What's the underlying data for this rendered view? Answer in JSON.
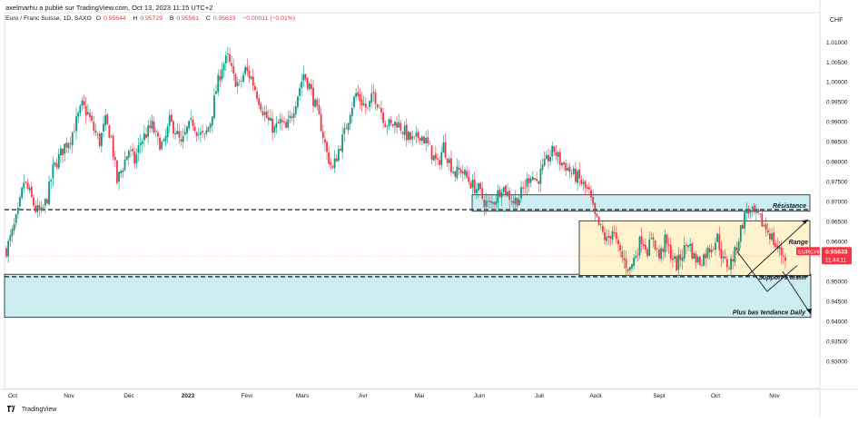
{
  "header": {
    "publisher": "axelmarhu a publié sur TradingView.com, Oct 13, 2023 11:15 UTC+2",
    "symbol_line": "Euro / Franc Suisse, 1D, SAXO",
    "ohlc": [
      {
        "label": "O",
        "value": "0.95644"
      },
      {
        "label": "H",
        "value": "0.95729"
      },
      {
        "label": "B",
        "value": "0.95561"
      },
      {
        "label": "C",
        "value": "0.95633"
      }
    ],
    "change": "−0.00011 (−0.01%)"
  },
  "footer": {
    "brand": "TradingView"
  },
  "chart_data": {
    "type": "candlestick",
    "symbol": "EURCHF",
    "currency": "CHF",
    "last_price": "0.95633",
    "countdown": "11:44:11",
    "ylim": [
      0.9232,
      1.0137
    ],
    "y_ticks": [
      "1.01000",
      "1.00500",
      "1.00000",
      "0.99500",
      "0.99000",
      "0.98500",
      "0.98000",
      "0.97500",
      "0.97000",
      "0.96500",
      "0.96000",
      "0.95500",
      "0.95000",
      "0.94500",
      "0.94000",
      "0.93500",
      "0.93000"
    ],
    "x_ticks": [
      "Oct",
      "Nov",
      "Déc",
      "2023",
      "Févr",
      "Mars",
      "Avr",
      "Mai",
      "Juin",
      "Juil",
      "Août",
      "Sept",
      "Oct",
      "Nov"
    ],
    "colors": {
      "up": "#089981",
      "down": "#f23645",
      "zone_blue": "#cdeef1",
      "zone_yellow": "#fff3cd",
      "axis_badge": "#f23645"
    },
    "close_path": [
      [
        0,
        0.958
      ],
      [
        3,
        0.962
      ],
      [
        6,
        0.967
      ],
      [
        9,
        0.975
      ],
      [
        12,
        0.972
      ],
      [
        15,
        0.968
      ],
      [
        18,
        0.967
      ],
      [
        21,
        0.971
      ],
      [
        24,
        0.978
      ],
      [
        27,
        0.981
      ],
      [
        30,
        0.984
      ],
      [
        33,
        0.986
      ],
      [
        36,
        0.99
      ],
      [
        39,
        0.994
      ],
      [
        42,
        0.992
      ],
      [
        45,
        0.988
      ],
      [
        48,
        0.985
      ],
      [
        51,
        0.99
      ],
      [
        54,
        0.986
      ],
      [
        57,
        0.975
      ],
      [
        60,
        0.979
      ],
      [
        63,
        0.983
      ],
      [
        66,
        0.98
      ],
      [
        69,
        0.985
      ],
      [
        72,
        0.987
      ],
      [
        75,
        0.989
      ],
      [
        78,
        0.985
      ],
      [
        81,
        0.984
      ],
      [
        84,
        0.99
      ],
      [
        87,
        0.988
      ],
      [
        90,
        0.984
      ],
      [
        93,
        0.988
      ],
      [
        96,
        0.99
      ],
      [
        99,
        0.987
      ],
      [
        102,
        0.986
      ],
      [
        105,
        0.99
      ],
      [
        108,
        0.998
      ],
      [
        111,
        1.004
      ],
      [
        114,
        1.006
      ],
      [
        117,
        1.001
      ],
      [
        120,
        0.999
      ],
      [
        123,
        1.003
      ],
      [
        126,
        1.001
      ],
      [
        129,
        0.997
      ],
      [
        132,
        0.993
      ],
      [
        135,
        0.99
      ],
      [
        138,
        0.988
      ],
      [
        141,
        0.99
      ],
      [
        144,
        0.988
      ],
      [
        147,
        0.992
      ],
      [
        150,
        0.997
      ],
      [
        153,
        1.002
      ],
      [
        156,
        0.999
      ],
      [
        159,
        0.994
      ],
      [
        162,
        0.989
      ],
      [
        165,
        0.982
      ],
      [
        168,
        0.978
      ],
      [
        171,
        0.983
      ],
      [
        174,
        0.987
      ],
      [
        177,
        0.993
      ],
      [
        180,
        0.997
      ],
      [
        183,
        0.995
      ],
      [
        186,
        0.993
      ],
      [
        189,
        0.997
      ],
      [
        192,
        0.994
      ],
      [
        195,
        0.99
      ],
      [
        198,
        0.989
      ],
      [
        201,
        0.99
      ],
      [
        204,
        0.988
      ],
      [
        207,
        0.986
      ],
      [
        210,
        0.985
      ],
      [
        213,
        0.987
      ],
      [
        216,
        0.985
      ],
      [
        219,
        0.982
      ],
      [
        222,
        0.979
      ],
      [
        225,
        0.984
      ],
      [
        228,
        0.98
      ],
      [
        231,
        0.977
      ],
      [
        234,
        0.978
      ],
      [
        237,
        0.976
      ],
      [
        240,
        0.974
      ],
      [
        243,
        0.973
      ],
      [
        246,
        0.97
      ],
      [
        249,
        0.969
      ],
      [
        252,
        0.971
      ],
      [
        255,
        0.974
      ],
      [
        258,
        0.972
      ],
      [
        261,
        0.97
      ],
      [
        264,
        0.971
      ],
      [
        267,
        0.974
      ],
      [
        270,
        0.977
      ],
      [
        273,
        0.975
      ],
      [
        276,
        0.978
      ],
      [
        279,
        0.981
      ],
      [
        282,
        0.983
      ],
      [
        285,
        0.98
      ],
      [
        288,
        0.979
      ],
      [
        291,
        0.977
      ],
      [
        294,
        0.976
      ],
      [
        297,
        0.974
      ],
      [
        300,
        0.972
      ],
      [
        303,
        0.966
      ],
      [
        306,
        0.963
      ],
      [
        309,
        0.96
      ],
      [
        312,
        0.963
      ],
      [
        315,
        0.958
      ],
      [
        318,
        0.955
      ],
      [
        321,
        0.953
      ],
      [
        324,
        0.957
      ],
      [
        327,
        0.961
      ],
      [
        330,
        0.958
      ],
      [
        333,
        0.961
      ],
      [
        336,
        0.956
      ],
      [
        339,
        0.96
      ],
      [
        342,
        0.957
      ],
      [
        345,
        0.954
      ],
      [
        348,
        0.957
      ],
      [
        351,
        0.96
      ],
      [
        354,
        0.956
      ],
      [
        357,
        0.955
      ],
      [
        360,
        0.957
      ],
      [
        363,
        0.959
      ],
      [
        366,
        0.961
      ],
      [
        369,
        0.955
      ],
      [
        372,
        0.954
      ],
      [
        375,
        0.957
      ],
      [
        378,
        0.963
      ],
      [
        381,
        0.968
      ],
      [
        384,
        0.967
      ],
      [
        387,
        0.966
      ],
      [
        390,
        0.964
      ],
      [
        393,
        0.962
      ],
      [
        396,
        0.959
      ],
      [
        399,
        0.957
      ],
      [
        401,
        0.9563
      ]
    ],
    "annotations": {
      "resistance_label": "Résistance",
      "range_label": "Range",
      "support_label": "Support à tester",
      "low_label": "Plus bas tendance Daily",
      "resistance_level": 0.968,
      "support_level": 0.9512,
      "low_level": 0.941
    }
  }
}
